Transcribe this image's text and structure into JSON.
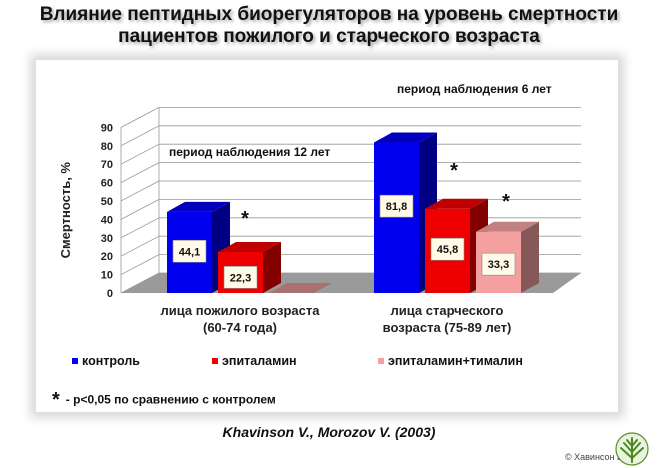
{
  "title_line1": "Влияние пептидных биорегуляторов на уровень смертности",
  "title_line2": "пациентов пожилого и старческого возраста",
  "chart_data": {
    "type": "bar",
    "ylabel": "Смертность, %",
    "ylim": [
      0,
      90
    ],
    "yticks": [
      "0",
      "10",
      "20",
      "30",
      "40",
      "50",
      "60",
      "70",
      "80",
      "90"
    ],
    "categories": [
      "лица пожилого возраста (60-74 года)",
      "лица старческого возраста (75-89 лет)"
    ],
    "category_lines": [
      [
        "лица пожилого возраста",
        "(60-74 года)"
      ],
      [
        "лица старческого",
        "возраста (75-89 лет)"
      ]
    ],
    "series": [
      {
        "name": "контроль",
        "color": "#0000ee",
        "values": [
          44.1,
          81.8
        ],
        "labels": [
          "44,1",
          "81,8"
        ]
      },
      {
        "name": "эпиталамин",
        "color": "#ee0000",
        "values": [
          22.3,
          45.8
        ],
        "labels": [
          "22,3",
          "45,8"
        ]
      },
      {
        "name": "эпиталамин+тималин",
        "color": "#f4a0a0",
        "values": [
          0,
          33.3
        ],
        "labels": [
          "",
          "33,3"
        ]
      }
    ],
    "annotations": [
      "период наблюдения 12 лет",
      "период наблюдения 6 лет"
    ],
    "significance_mark": "*",
    "grid": true,
    "legend_position": "bottom"
  },
  "legend": {
    "items": [
      "контроль",
      "эпиталамин",
      "эпиталамин+тималин"
    ]
  },
  "footnote": {
    "star": "*",
    "text": "- p<0,05 по сравнению с контролем"
  },
  "citation": "Khavinson V., Morozov V. (2003)",
  "copyright": "© Хавинсон В.Х."
}
